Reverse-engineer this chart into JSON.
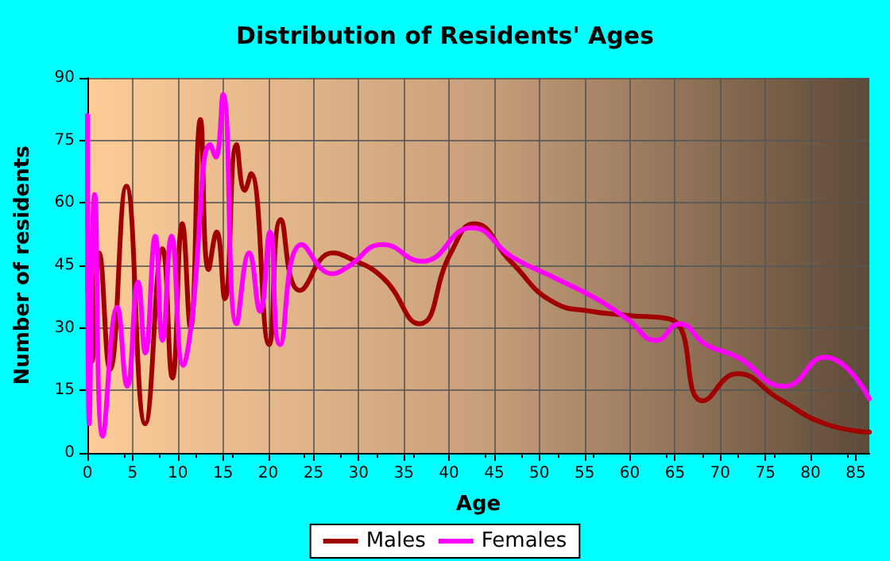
{
  "chart_data": {
    "type": "line",
    "title": "Distribution of Residents' Ages",
    "xlabel": "Age",
    "ylabel": "Number of residents",
    "xlim": [
      0,
      86.5
    ],
    "xticks": [
      0,
      5,
      10,
      15,
      20,
      25,
      30,
      35,
      40,
      45,
      50,
      55,
      60,
      65,
      70,
      75,
      80,
      85
    ],
    "ylim": [
      0,
      90
    ],
    "yticks": [
      0,
      15,
      30,
      45,
      60,
      75,
      90
    ],
    "grid": true,
    "legend": "bottom",
    "marker": "none",
    "line_style": "solid",
    "series": [
      {
        "name": "Males",
        "color": "#a00000",
        "x": [
          0,
          0.5,
          1.3,
          2.5,
          4.3,
          6.4,
          8.3,
          9.4,
          10.5,
          11.4,
          12.5,
          13.4,
          14.3,
          15.2,
          16.5,
          17.4,
          18.1,
          20.1,
          21.4,
          23.5,
          27.1,
          28.7,
          32.7,
          36.7,
          40.2,
          42.8,
          46.8,
          51.7,
          55.7,
          59.8,
          64.6,
          68.1,
          71.9,
          76.5,
          81.6,
          86.5
        ],
        "values": [
          45,
          22,
          48,
          20,
          64,
          7,
          49,
          18,
          55,
          30,
          80,
          44,
          53,
          37,
          74,
          63,
          67,
          26,
          56,
          39,
          48,
          47,
          42,
          31,
          48,
          55,
          46,
          36,
          34,
          33,
          32,
          12.5,
          19,
          13,
          7,
          5
        ]
      },
      {
        "name": "Females",
        "color": "#ff00ff",
        "x": [
          0,
          0.2,
          0.8,
          1.7,
          3.3,
          4.4,
          5.6,
          6.4,
          7.5,
          8.3,
          9.3,
          10.6,
          11.5,
          13.6,
          14.2,
          15,
          16.5,
          17.9,
          19.1,
          20.2,
          21.3,
          23.7,
          27.1,
          28.7,
          32.7,
          37,
          42.5,
          47,
          51.7,
          56.3,
          59.8,
          62.9,
          65.5,
          68.4,
          71.9,
          77.1,
          81.6,
          86.5
        ],
        "values": [
          81,
          7,
          62,
          4,
          35,
          16,
          41,
          24,
          52,
          27,
          52,
          21,
          31,
          74,
          71,
          86,
          31,
          48,
          34,
          53,
          26,
          50,
          43,
          44.5,
          50,
          46,
          54,
          47,
          42,
          37,
          32,
          27,
          31,
          26,
          23,
          16,
          23,
          13
        ]
      }
    ]
  }
}
